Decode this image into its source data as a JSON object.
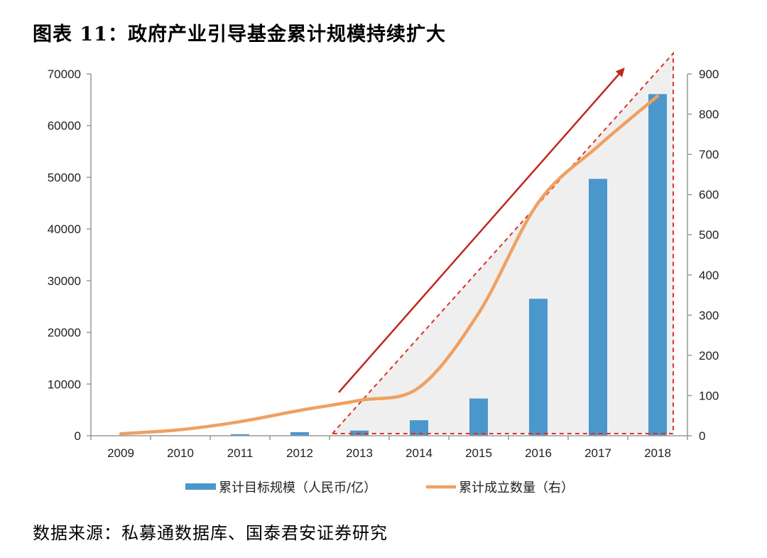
{
  "title": "图表 11：政府产业引导基金累计规模持续扩大",
  "source": "数据来源：私募通数据库、国泰君安证券研究",
  "colors": {
    "bar": "#4a97cc",
    "line": "#f0a060",
    "accent_arrow": "#c0281e",
    "triangle": "#e03028",
    "shade": "#f0f0f0",
    "axis": "#999999"
  },
  "chart_data": {
    "type": "bar+line",
    "categories": [
      "2009",
      "2010",
      "2011",
      "2012",
      "2013",
      "2014",
      "2015",
      "2016",
      "2017",
      "2018"
    ],
    "series": [
      {
        "name": "累计目标规模（人民币/亿）",
        "type": "bar",
        "axis": "left",
        "values": [
          0,
          50,
          300,
          700,
          1000,
          3000,
          7200,
          26500,
          49700,
          66100
        ]
      },
      {
        "name": "累计成立数量（右）",
        "type": "line",
        "axis": "right",
        "values": [
          5,
          15,
          35,
          63,
          88,
          120,
          305,
          580,
          720,
          845
        ]
      }
    ],
    "left_axis": {
      "ylim": [
        0,
        70000
      ],
      "ticks": [
        "0",
        "10000",
        "20000",
        "30000",
        "40000",
        "50000",
        "60000",
        "70000"
      ]
    },
    "right_axis": {
      "ylim": [
        0,
        900
      ],
      "ticks": [
        "0",
        "100",
        "200",
        "300",
        "400",
        "500",
        "600",
        "700",
        "800",
        "900"
      ]
    },
    "grid": false,
    "legend_position": "bottom"
  }
}
